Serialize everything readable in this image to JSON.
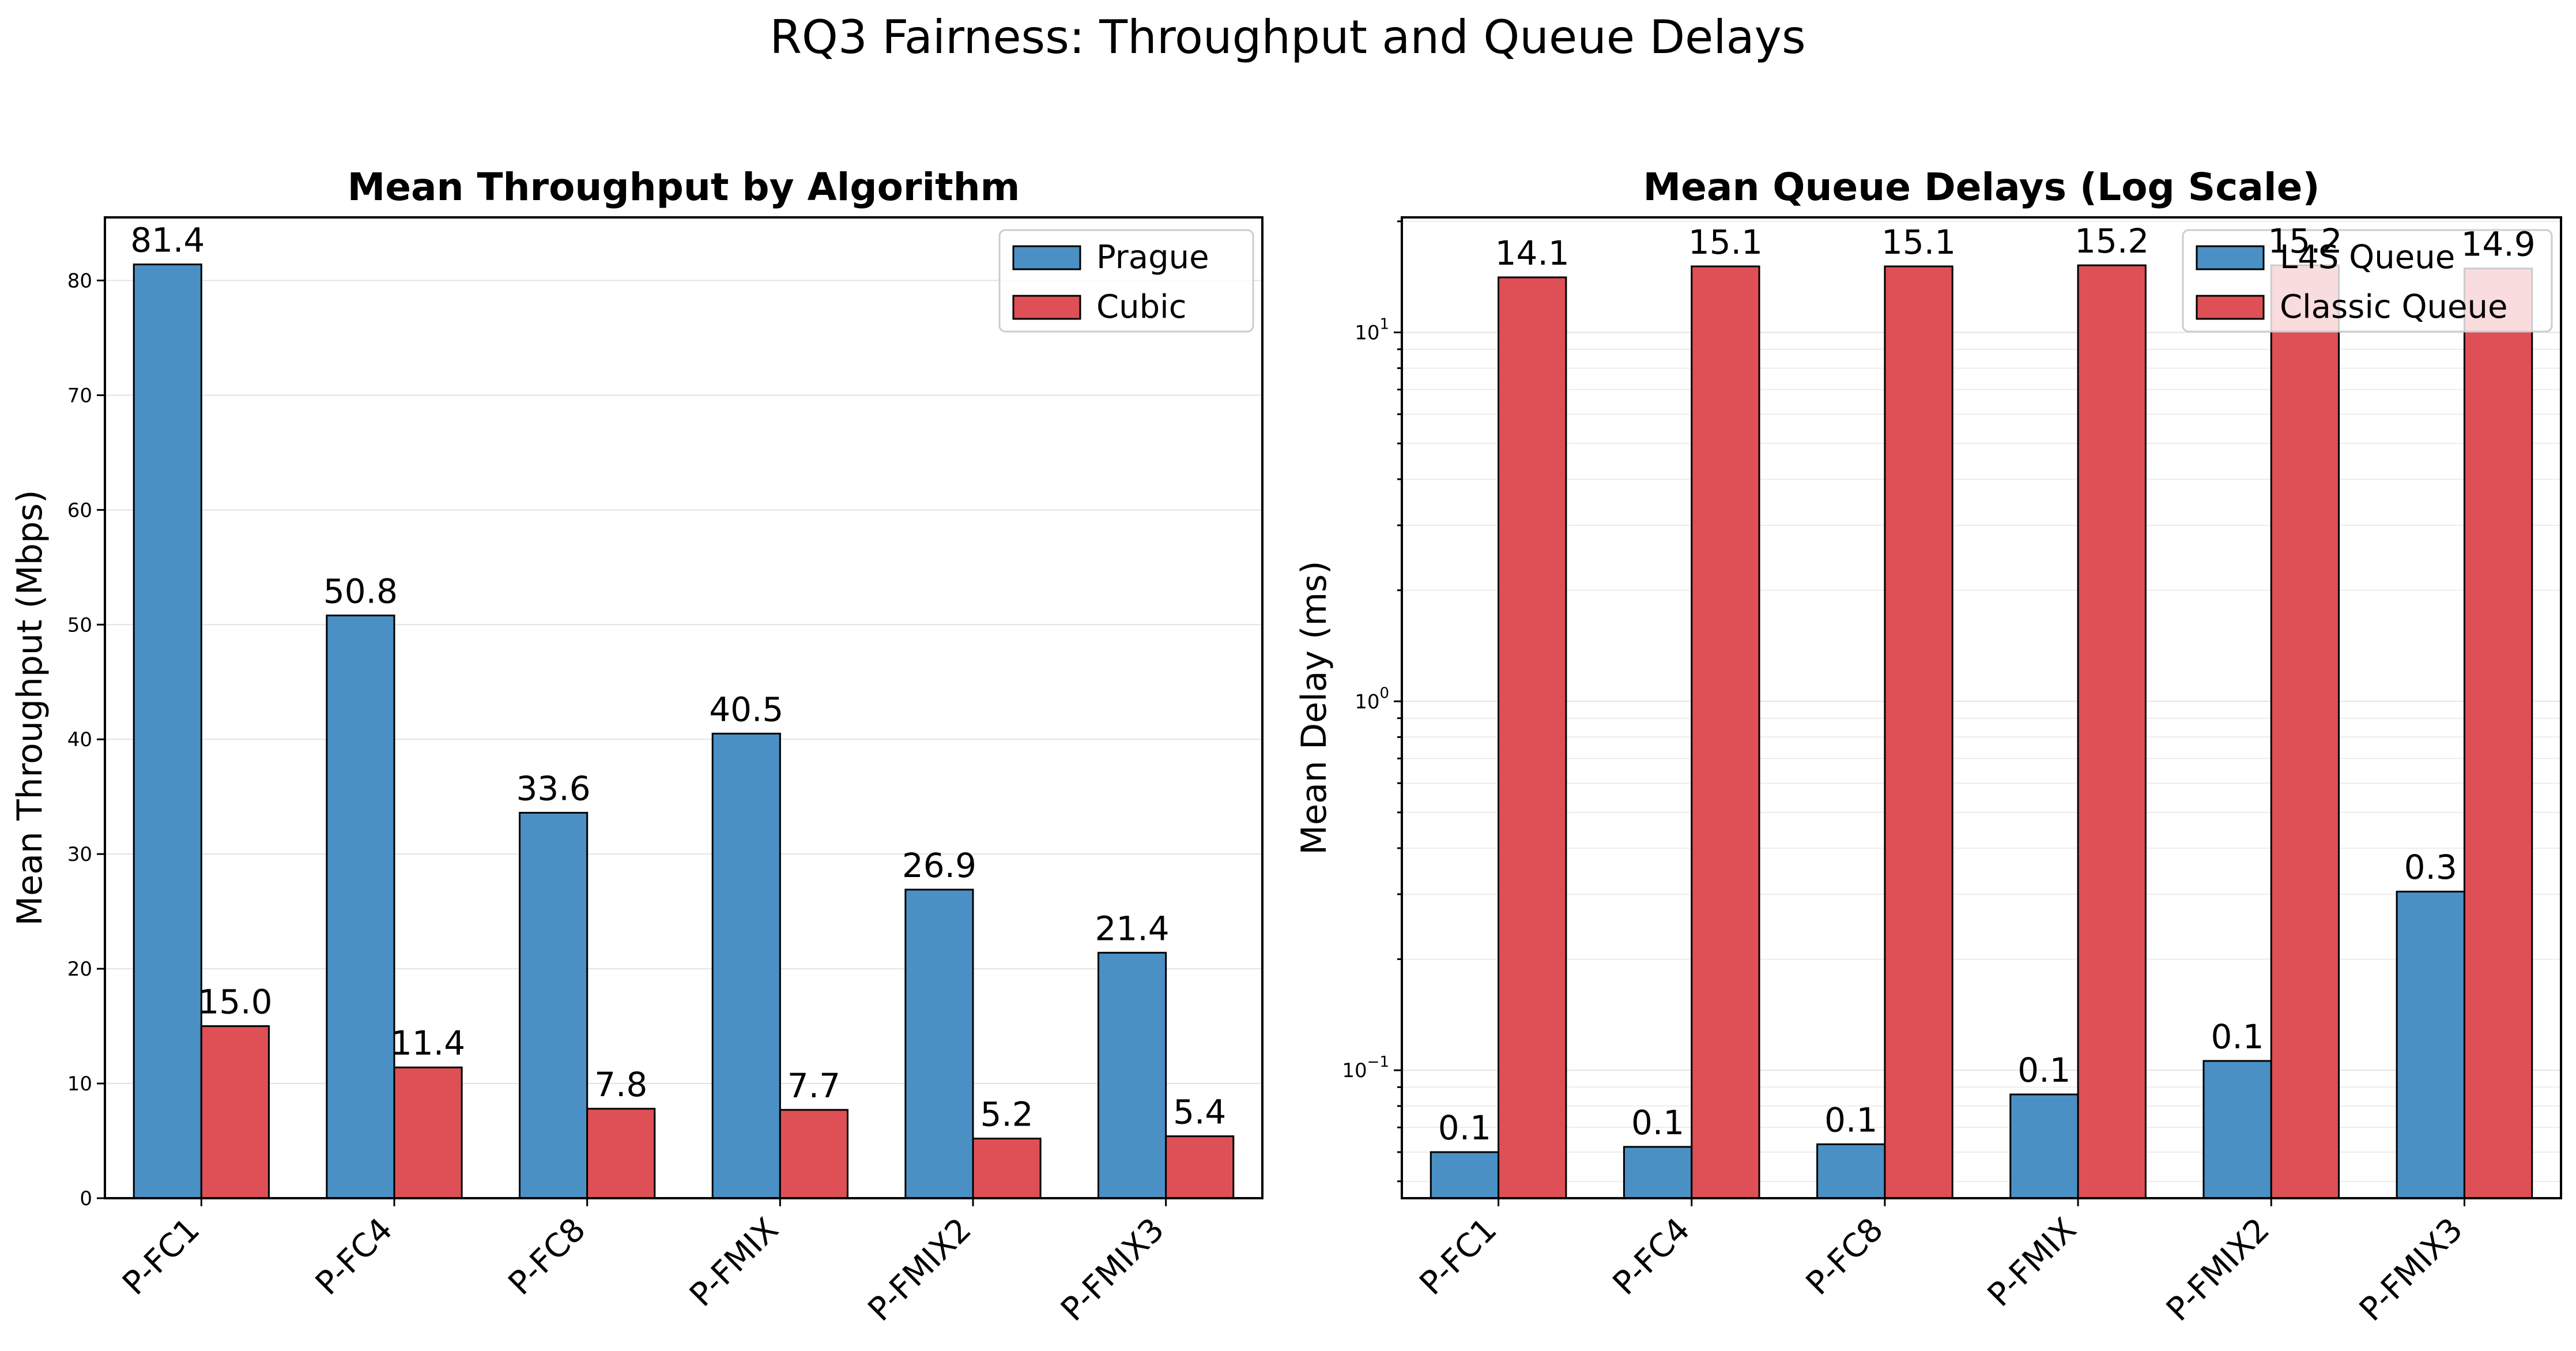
{
  "suptitle": "RQ3 Fairness: Throughput and Queue Delays",
  "colors": {
    "blue": "#4a90c4",
    "red": "#de5055"
  },
  "chart_data": [
    {
      "type": "bar",
      "title": "Mean Throughput by Algorithm",
      "xlabel": "",
      "ylabel": "Mean Throughput (Mbps)",
      "ylim": [
        0,
        85.5
      ],
      "yscale": "linear",
      "yticks": [
        0,
        10,
        20,
        30,
        40,
        50,
        60,
        70,
        80
      ],
      "grid": "y",
      "legend": "top-right",
      "categories": [
        "P-FC1",
        "P-FC4",
        "P-FC8",
        "P-FMIX",
        "P-FMIX2",
        "P-FMIX3"
      ],
      "series": [
        {
          "name": "Prague",
          "color": "#4a90c4",
          "values": [
            81.4,
            50.8,
            33.6,
            40.5,
            26.9,
            21.4
          ],
          "labels": [
            "81.4",
            "50.8",
            "33.6",
            "40.5",
            "26.9",
            "21.4"
          ]
        },
        {
          "name": "Cubic",
          "color": "#de5055",
          "values": [
            15.0,
            11.4,
            7.8,
            7.7,
            5.2,
            5.4
          ],
          "labels": [
            "15.0",
            "11.4",
            "7.8",
            "7.7",
            "5.2",
            "5.4"
          ]
        }
      ]
    },
    {
      "type": "bar",
      "title": "Mean Queue Delays (Log Scale)",
      "xlabel": "",
      "ylabel": "Mean Delay (ms)",
      "ylim": [
        0.045,
        20.5
      ],
      "yscale": "log",
      "yticks": [
        {
          "value": 0.1,
          "base": "10",
          "exp": "−1"
        },
        {
          "value": 1,
          "base": "10",
          "exp": "0"
        },
        {
          "value": 10,
          "base": "10",
          "exp": "1"
        }
      ],
      "grid": "y",
      "legend": "top-right",
      "categories": [
        "P-FC1",
        "P-FC4",
        "P-FC8",
        "P-FMIX",
        "P-FMIX2",
        "P-FMIX3"
      ],
      "series": [
        {
          "name": "L4S Queue",
          "color": "#4a90c4",
          "values": [
            0.06,
            0.062,
            0.063,
            0.086,
            0.106,
            0.305
          ],
          "labels": [
            "0.1",
            "0.1",
            "0.1",
            "0.1",
            "0.1",
            "0.3"
          ]
        },
        {
          "name": "Classic Queue",
          "color": "#de5055",
          "values": [
            14.1,
            15.1,
            15.1,
            15.2,
            15.2,
            14.9
          ],
          "labels": [
            "14.1",
            "15.1",
            "15.1",
            "15.2",
            "15.2",
            "14.9"
          ]
        }
      ]
    }
  ]
}
